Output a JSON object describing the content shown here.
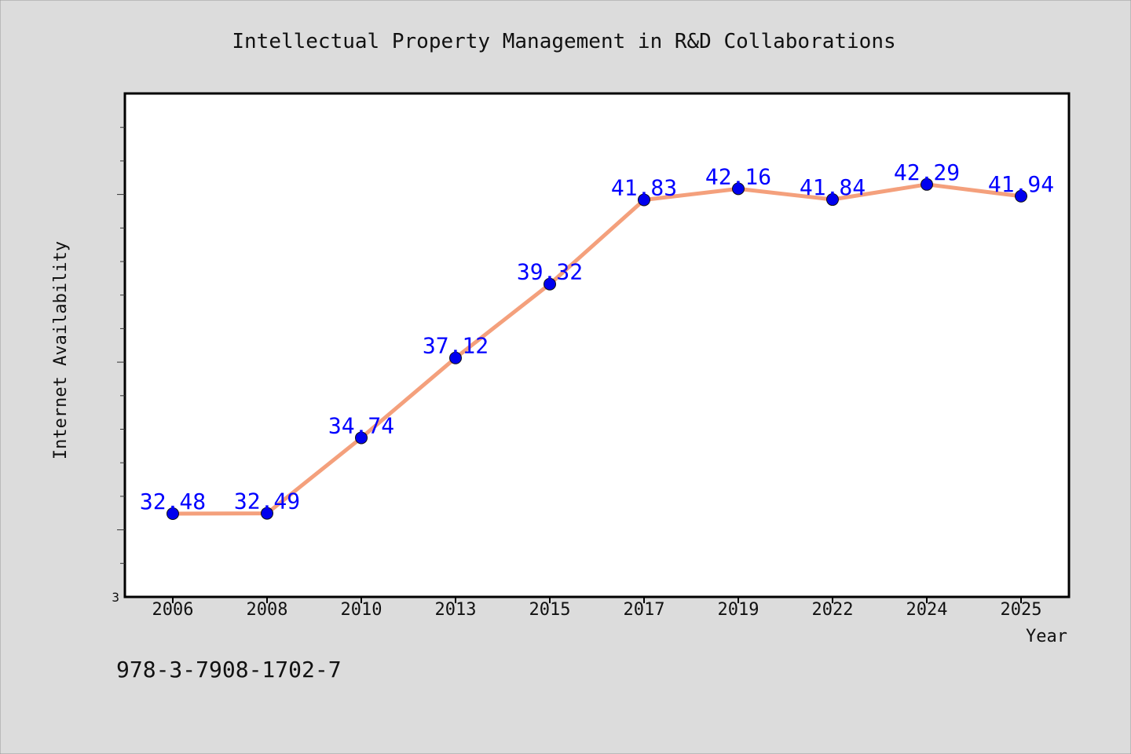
{
  "chart_data": {
    "type": "line",
    "title": "Intellectual Property Management in R&D Collaborations",
    "xlabel": "Year",
    "ylabel": "Internet Availability",
    "categories": [
      "2006",
      "2008",
      "2010",
      "2013",
      "2015",
      "2017",
      "2019",
      "2022",
      "2024",
      "2025"
    ],
    "series": [
      {
        "values": [
          32.48,
          32.49,
          34.74,
          37.12,
          39.32,
          41.83,
          42.16,
          41.84,
          42.29,
          41.94
        ],
        "labels": [
          "32.48",
          "32.49",
          "34.74",
          "37.12",
          "39.32",
          "41.83",
          "42.16",
          "41.84",
          "42.29",
          "41.94"
        ]
      }
    ],
    "y_tick_label": "3",
    "ylim": [
      30.0,
      45.0
    ],
    "grid": false,
    "colors": {
      "line": "#f4a07c",
      "marker": "#0000ee",
      "label": "#0000ff"
    }
  },
  "footer": {
    "code": "978-3-7908-1702-7"
  }
}
